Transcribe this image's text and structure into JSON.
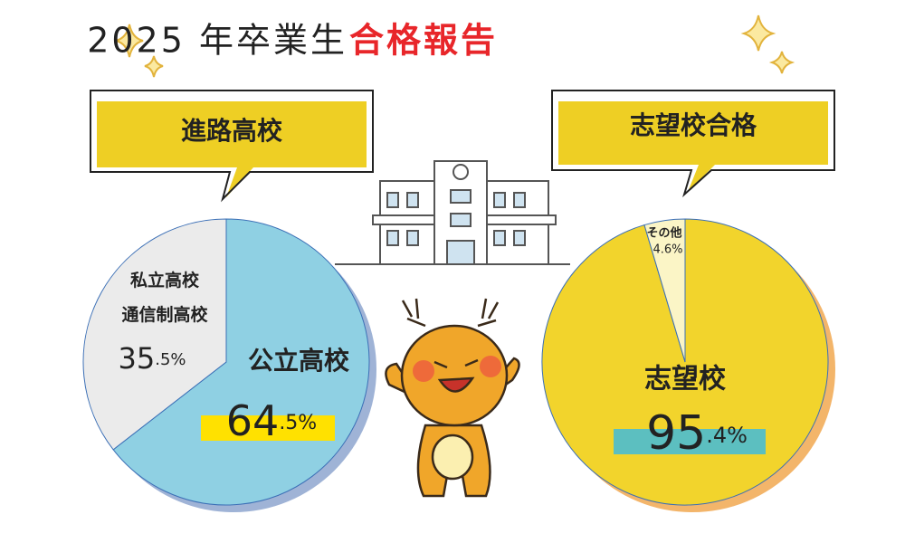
{
  "header": {
    "title_main": "2025 年卒業生",
    "title_highlight": "合格報告"
  },
  "chart_data": [
    {
      "type": "pie",
      "title": "進路高校",
      "categories": [
        "公立高校",
        "私立高校\n通信制高校"
      ],
      "values": [
        64.5,
        35.5
      ],
      "value_labels": [
        "64.5%",
        "35.5%"
      ],
      "colors": [
        "#8fd0e3",
        "#ebebeb"
      ],
      "shadow_color": "#9fb3d6",
      "highlight_color": "#ffe100"
    },
    {
      "type": "pie",
      "title": "志望校合格",
      "categories": [
        "志望校",
        "その他"
      ],
      "values": [
        95.4,
        4.6
      ],
      "value_labels": [
        "95.4%",
        "4.6%"
      ],
      "colors": [
        "#f2d42c",
        "#fbf5c6"
      ],
      "shadow_color": "#f3b56a",
      "highlight_color": "#5cbfc0"
    }
  ]
}
